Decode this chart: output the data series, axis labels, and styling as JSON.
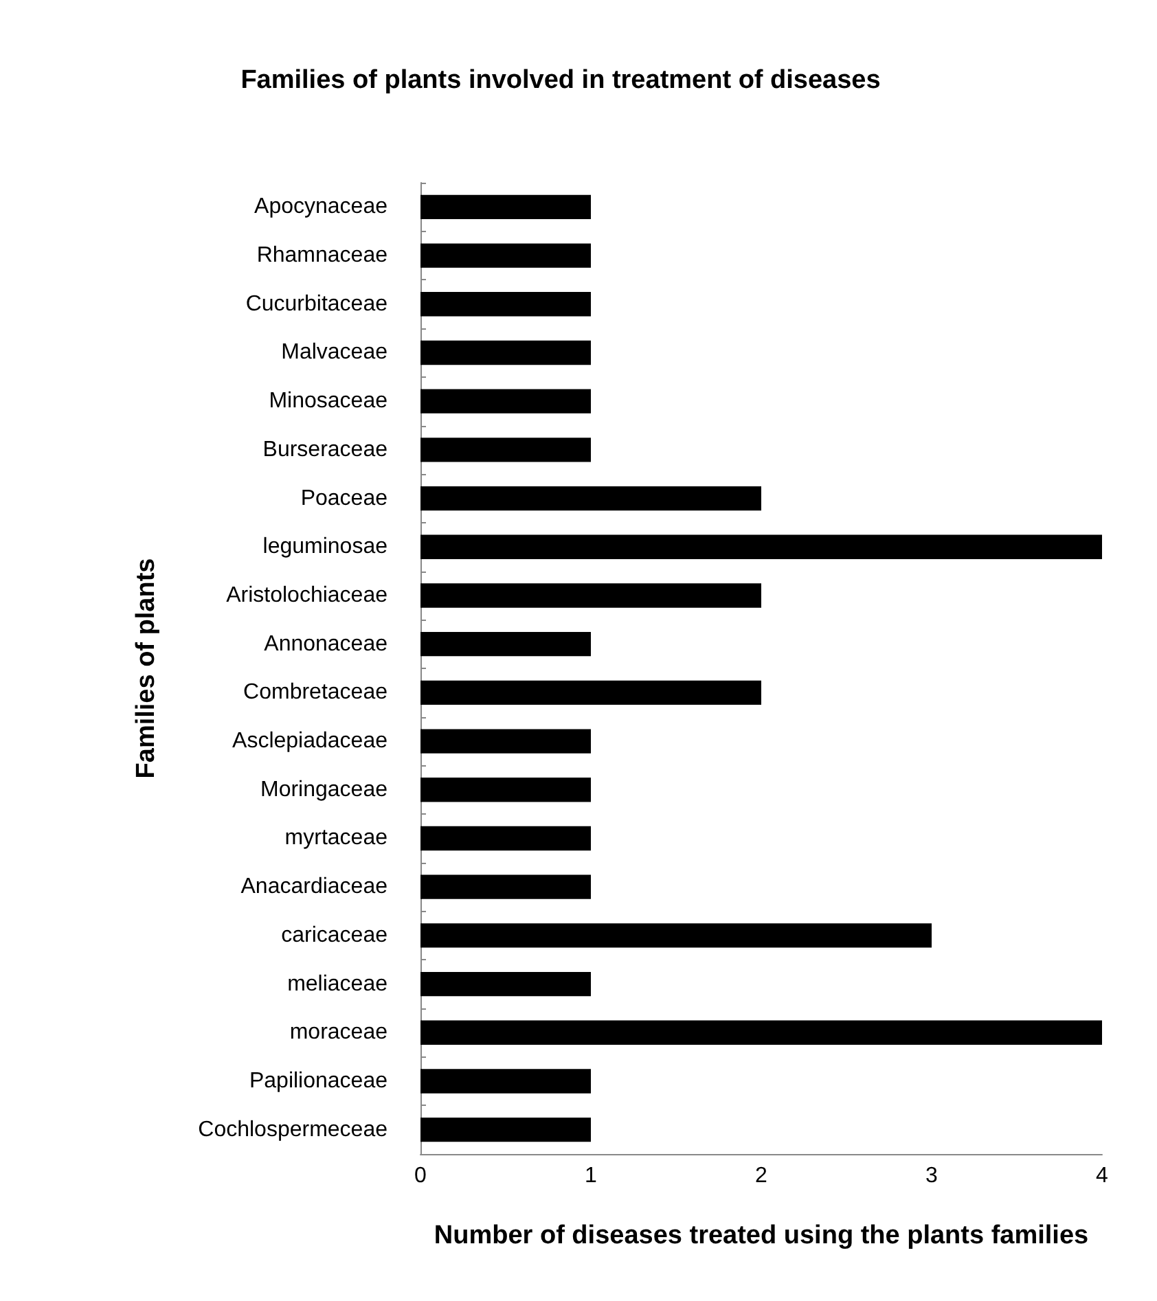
{
  "chart_data": {
    "type": "bar",
    "orientation": "horizontal",
    "title": "Families of plants involved in treatment of diseases",
    "xlabel": "Number of diseases treated using the plants families",
    "ylabel": "Families of plants",
    "categories": [
      "Apocynaceae",
      "Rhamnaceae",
      "Cucurbitaceae",
      "Malvaceae",
      "Minosaceae",
      "Burseraceae",
      "Poaceae",
      "leguminosae",
      "Aristolochiaceae",
      "Annonaceae",
      "Combretaceae",
      "Asclepiadaceae",
      "Moringaceae",
      "myrtaceae",
      "Anacardiaceae",
      "caricaceae",
      "meliaceae",
      "moraceae",
      "Papilionaceae",
      "Cochlospermeceae"
    ],
    "values": [
      1,
      1,
      1,
      1,
      1,
      1,
      2,
      4,
      2,
      1,
      2,
      1,
      1,
      1,
      1,
      3,
      1,
      4,
      1,
      1
    ],
    "color": "#000000",
    "xlim": [
      0,
      4
    ],
    "xticks": [
      0,
      1,
      2,
      3,
      4
    ],
    "grid": false
  }
}
